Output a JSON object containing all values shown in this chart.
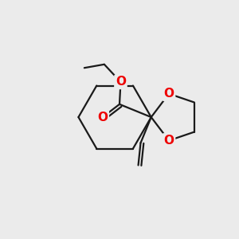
{
  "bg_color": "#ebebeb",
  "bond_color": "#1a1a1a",
  "oxygen_color": "#ee0000",
  "line_width": 1.6,
  "fig_size": [
    3.0,
    3.0
  ],
  "dpi": 100,
  "xlim": [
    0,
    10
  ],
  "ylim": [
    0,
    10
  ]
}
